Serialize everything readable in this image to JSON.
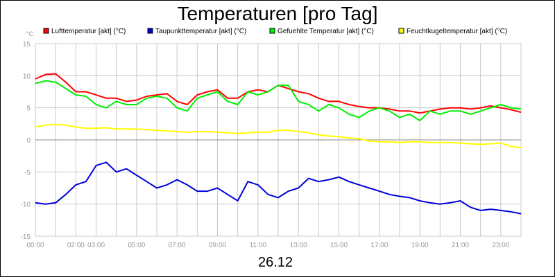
{
  "chart_data": {
    "type": "line",
    "title": "Temperaturen [pro Tag]",
    "date_label": "26.12",
    "ylabel": "°C",
    "ylim": [
      -15,
      15
    ],
    "yticks": [
      15,
      10,
      5,
      0,
      -5,
      -10,
      -15
    ],
    "xlim": [
      0,
      24
    ],
    "xticks": [
      {
        "label": "00:00",
        "h": 0
      },
      {
        "label": "02:00",
        "h": 2
      },
      {
        "label": "03:00",
        "h": 3
      },
      {
        "label": "05:00",
        "h": 5
      },
      {
        "label": "07:00",
        "h": 7
      },
      {
        "label": "09:00",
        "h": 9
      },
      {
        "label": "11:00",
        "h": 11
      },
      {
        "label": "13:00",
        "h": 13
      },
      {
        "label": "15:00",
        "h": 15
      },
      {
        "label": "17:00",
        "h": 17
      },
      {
        "label": "19:00",
        "h": 19
      },
      {
        "label": "21:00",
        "h": 21
      },
      {
        "label": "23:00",
        "h": 23
      }
    ],
    "grid_hours": [
      0,
      1,
      2,
      3,
      4,
      5,
      6,
      7,
      8,
      9,
      10,
      11,
      12,
      13,
      14,
      15,
      16,
      17,
      18,
      19,
      20,
      21,
      22,
      23,
      24
    ],
    "series": [
      {
        "name": "Lufttemperatur [akt] (°C)",
        "color": "#ff0000",
        "x": [
          0,
          0.5,
          1,
          1.5,
          2,
          2.5,
          3,
          3.5,
          4,
          4.5,
          5,
          5.5,
          6,
          6.5,
          7,
          7.5,
          8,
          8.5,
          9,
          9.5,
          10,
          10.5,
          11,
          11.5,
          12,
          12.5,
          13,
          13.5,
          14,
          14.5,
          15,
          15.5,
          16,
          16.5,
          17,
          17.5,
          18,
          18.5,
          19,
          19.5,
          20,
          20.5,
          21,
          21.5,
          22,
          22.5,
          23,
          23.5,
          24
        ],
        "y": [
          9.5,
          10.2,
          10.3,
          9.0,
          7.5,
          7.5,
          7.0,
          6.5,
          6.5,
          6.0,
          6.2,
          6.8,
          7.0,
          7.2,
          6.0,
          5.5,
          7.0,
          7.5,
          7.8,
          6.5,
          6.5,
          7.5,
          7.8,
          7.5,
          8.5,
          8.0,
          7.5,
          7.2,
          6.5,
          6.0,
          6.0,
          5.5,
          5.2,
          5.0,
          5.0,
          4.8,
          4.5,
          4.5,
          4.2,
          4.5,
          4.8,
          5.0,
          5.0,
          4.8,
          5.0,
          5.3,
          5.0,
          4.7,
          4.3
        ]
      },
      {
        "name": "Taupunkttemperatur [akt] (°C)",
        "color": "#0000dd",
        "x": [
          0,
          0.5,
          1,
          1.5,
          2,
          2.5,
          3,
          3.5,
          4,
          4.5,
          5,
          5.5,
          6,
          6.5,
          7,
          7.5,
          8,
          8.5,
          9,
          9.5,
          10,
          10.5,
          11,
          11.5,
          12,
          12.5,
          13,
          13.5,
          14,
          14.5,
          15,
          15.5,
          16,
          16.5,
          17,
          17.5,
          18,
          18.5,
          19,
          19.5,
          20,
          20.5,
          21,
          21.5,
          22,
          22.5,
          23,
          23.5,
          24
        ],
        "y": [
          -9.8,
          -10.0,
          -9.8,
          -8.5,
          -7.0,
          -6.5,
          -4.0,
          -3.5,
          -5.0,
          -4.5,
          -5.5,
          -6.5,
          -7.5,
          -7.0,
          -6.2,
          -7.0,
          -8.0,
          -8.0,
          -7.5,
          -8.5,
          -9.5,
          -6.5,
          -7.0,
          -8.5,
          -9.0,
          -8.0,
          -7.5,
          -6.0,
          -6.5,
          -6.2,
          -5.8,
          -6.5,
          -7.0,
          -7.5,
          -8.0,
          -8.5,
          -8.8,
          -9.0,
          -9.5,
          -9.8,
          -10.0,
          -9.8,
          -9.5,
          -10.5,
          -11.0,
          -10.8,
          -11.0,
          -11.2,
          -11.5
        ]
      },
      {
        "name": "Gefuehlte Temperatur [akt] (°C)",
        "color": "#00ee00",
        "x": [
          0,
          0.5,
          1,
          1.5,
          2,
          2.5,
          3,
          3.5,
          4,
          4.5,
          5,
          5.5,
          6,
          6.5,
          7,
          7.5,
          8,
          8.5,
          9,
          9.5,
          10,
          10.5,
          11,
          11.5,
          12,
          12.5,
          13,
          13.5,
          14,
          14.5,
          15,
          15.5,
          16,
          16.5,
          17,
          17.5,
          18,
          18.5,
          19,
          19.5,
          20,
          20.5,
          21,
          21.5,
          22,
          22.5,
          23,
          23.5,
          24
        ],
        "y": [
          8.8,
          9.2,
          9.0,
          8.0,
          7.0,
          6.8,
          5.5,
          5.0,
          6.0,
          5.5,
          5.5,
          6.5,
          6.8,
          6.5,
          5.0,
          4.5,
          6.5,
          7.0,
          7.5,
          6.0,
          5.5,
          7.5,
          7.0,
          7.5,
          8.5,
          8.5,
          6.0,
          5.5,
          4.5,
          5.5,
          5.0,
          4.0,
          3.5,
          4.5,
          5.0,
          4.5,
          3.5,
          4.0,
          3.0,
          4.5,
          4.0,
          4.5,
          4.5,
          4.0,
          4.5,
          5.0,
          5.5,
          5.0,
          4.8
        ]
      },
      {
        "name": "Feuchtkugeltemperatur [akt] (°C)",
        "color": "#ffff00",
        "x": [
          0,
          0.5,
          1,
          1.5,
          2,
          2.5,
          3,
          3.5,
          4,
          4.5,
          5,
          5.5,
          6,
          6.5,
          7,
          7.5,
          8,
          8.5,
          9,
          9.5,
          10,
          10.5,
          11,
          11.5,
          12,
          12.5,
          13,
          13.5,
          14,
          14.5,
          15,
          15.5,
          16,
          16.5,
          17,
          17.5,
          18,
          18.5,
          19,
          19.5,
          20,
          20.5,
          21,
          21.5,
          22,
          22.5,
          23,
          23.5,
          24
        ],
        "y": [
          2.0,
          2.3,
          2.4,
          2.3,
          2.0,
          1.8,
          1.8,
          1.9,
          1.7,
          1.7,
          1.7,
          1.6,
          1.5,
          1.4,
          1.3,
          1.2,
          1.3,
          1.3,
          1.2,
          1.1,
          1.0,
          1.1,
          1.2,
          1.2,
          1.5,
          1.5,
          1.3,
          1.1,
          0.8,
          0.6,
          0.5,
          0.3,
          0.2,
          -0.2,
          -0.3,
          -0.3,
          -0.4,
          -0.3,
          -0.3,
          -0.4,
          -0.4,
          -0.4,
          -0.5,
          -0.6,
          -0.7,
          -0.6,
          -0.5,
          -1.0,
          -1.2
        ]
      }
    ]
  }
}
